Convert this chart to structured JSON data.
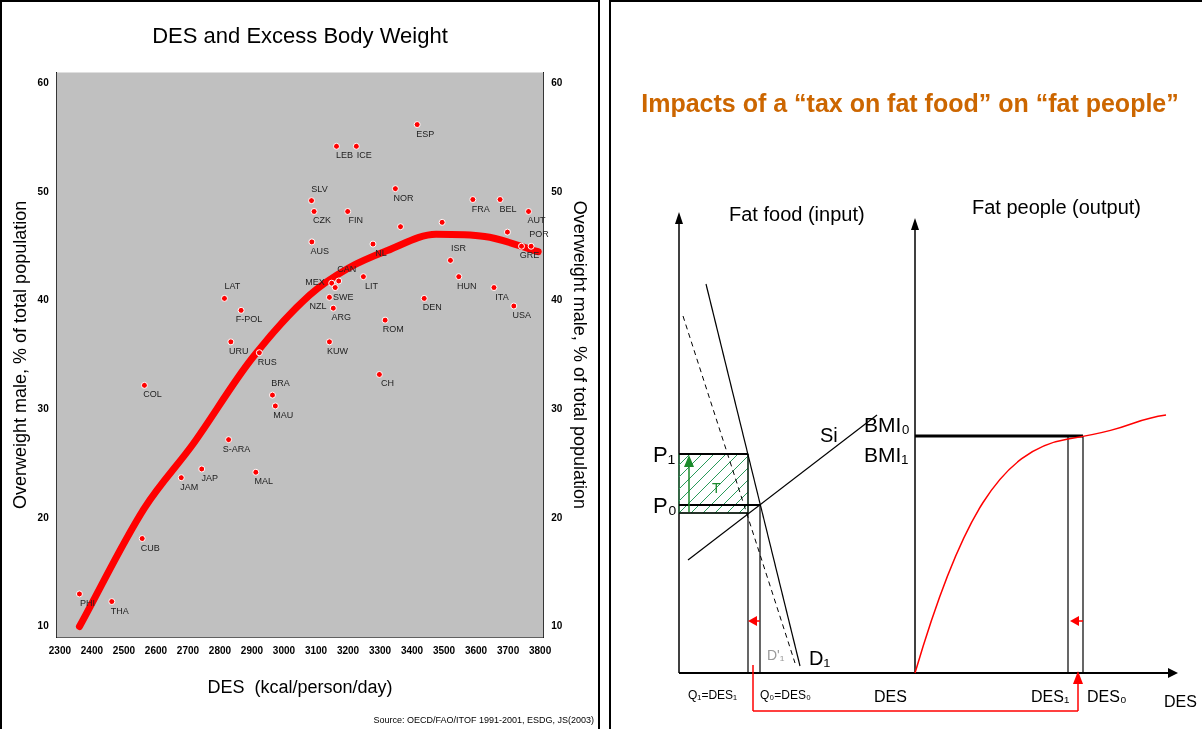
{
  "chart_data": [
    {
      "type": "scatter",
      "title": "DES and Excess Body Weight",
      "xlabel": "DES  (kcal/person/day)",
      "ylabel": "Overweight male, % of total population",
      "y2label": "Overweight male, % of total population",
      "xlim": [
        2290,
        3810
      ],
      "xticks": [
        2300,
        2400,
        2500,
        2600,
        2700,
        2800,
        2900,
        3000,
        3100,
        3200,
        3300,
        3400,
        3500,
        3600,
        3700,
        3800
      ],
      "ylim": [
        9,
        61
      ],
      "yticks": [
        10,
        20,
        30,
        40,
        50,
        60
      ],
      "y2lim": [
        9,
        61
      ],
      "y2ticks": [
        10,
        20,
        30,
        40,
        50,
        60
      ],
      "grid": false,
      "annotations": [
        "Source: OECD/FAO/ITOF 1991-2001, ESDG, JS(2003)"
      ],
      "series": [
        {
          "type": "scatter",
          "marker": "circle",
          "color": "#ff0000",
          "x": [
            2361,
            2462,
            2557,
            2564,
            2679,
            2743,
            2827,
            2912,
            2964,
            2973,
            2814,
            2866,
            2834,
            2923,
            3416,
            3164,
            3226,
            3348,
            3086,
            3094,
            3199,
            3087,
            3278,
            3364,
            3494,
            3590,
            3675,
            3764,
            3698,
            3742,
            3772,
            3520,
            3546,
            3248,
            3656,
            3438,
            3718,
            3316,
            3149,
            3171,
            3160,
            3142,
            3154,
            3142,
            3298
          ],
          "values": [
            13.0,
            12.3,
            18.1,
            32.2,
            23.7,
            24.5,
            27.2,
            24.2,
            31.3,
            30.3,
            40.2,
            39.1,
            36.2,
            35.2,
            56.2,
            54.2,
            54.2,
            50.3,
            49.2,
            48.2,
            48.2,
            45.4,
            45.2,
            46.8,
            47.2,
            49.3,
            49.3,
            48.2,
            46.3,
            45.0,
            45.0,
            43.7,
            42.2,
            42.2,
            41.2,
            40.2,
            39.5,
            38.2,
            41.6,
            41.8,
            41.2,
            40.3,
            39.3,
            36.2,
            33.2
          ],
          "value_labels": [
            "PHI",
            "THA",
            "CUB",
            "COL",
            "JAM",
            "JAP",
            "S-ARA",
            "MAL",
            "BRA",
            "MAU",
            "LAT",
            "F-POL",
            "URU",
            "RUS",
            "ESP",
            "LEB",
            "ICE",
            "NOR",
            "SLV",
            "CZK",
            "FIN",
            "AUS",
            "NL",
            null,
            null,
            "FRA",
            "BEL",
            "AUT",
            null,
            "GRE",
            "POR",
            "ISR",
            "HUN",
            "LIT",
            "ITA",
            "DEN",
            "USA",
            "ROM",
            "MEX",
            "CAN",
            "SWE",
            "NZL",
            "ARG",
            "KUW",
            "CH"
          ]
        },
        {
          "type": "line",
          "marker": "none",
          "color": "#ff0000",
          "x": [
            2361,
            2564,
            2716,
            2898,
            3080,
            3202,
            3323,
            3475,
            3627,
            3794
          ],
          "values": [
            10.0,
            20.9,
            26.8,
            34.6,
            40.5,
            43.0,
            44.6,
            46.1,
            45.9,
            44.5
          ]
        }
      ]
    },
    {
      "type": "other",
      "title": "Impacts of a “tax on fat food” on “fat people”",
      "annotations": [
        "Fat food (input)",
        "Fat people (output)",
        "P₁",
        "P₀",
        "Si",
        "BMI₀",
        "BMI₁",
        "T",
        "D'₁",
        "D₁",
        "Q₁=DES₁",
        "Q₀=DES₀",
        "DES",
        "DES₁",
        "DES₀",
        "DES"
      ]
    }
  ]
}
